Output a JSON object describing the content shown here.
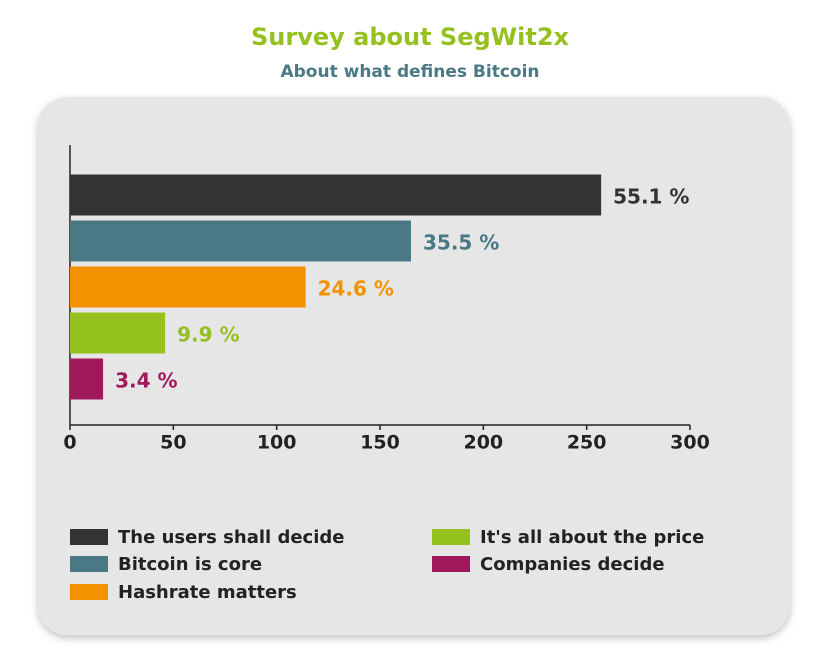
{
  "chart_data": {
    "type": "hbar",
    "title": "Survey about SegWit2x",
    "subtitle": "About what defines Bitcoin",
    "categories": [
      "The users shall decide",
      "Bitcoin is core",
      "Hashrate matters",
      "It's all about the price",
      "Companies decide"
    ],
    "values": [
      257,
      165,
      114,
      46,
      16
    ],
    "value_labels": [
      "55.1 %",
      "35.5 %",
      "24.6 %",
      "9.9 %",
      "3.4 %"
    ],
    "colors": [
      "#333333",
      "#4a7884",
      "#f39200",
      "#95c11f",
      "#a0195a"
    ],
    "xlim": [
      0,
      300
    ],
    "xticks": [
      0,
      50,
      100,
      150,
      200,
      250,
      300
    ],
    "grid": false
  }
}
